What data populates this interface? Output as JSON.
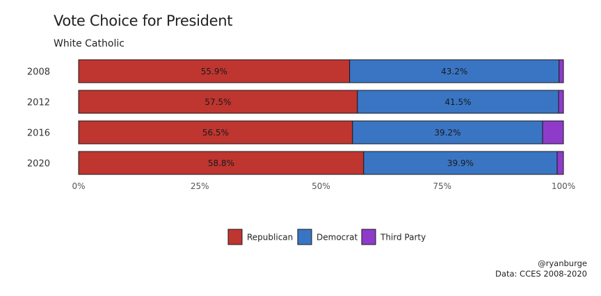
{
  "chart_data": {
    "type": "bar",
    "orientation": "horizontal",
    "stacked": true,
    "title": "Vote Choice for President",
    "subtitle": "White Catholic",
    "categories": [
      "2008",
      "2012",
      "2016",
      "2020"
    ],
    "series": [
      {
        "name": "Republican",
        "color": "#BF3530",
        "values": [
          55.9,
          57.5,
          56.5,
          58.8
        ],
        "labels": [
          "55.9%",
          "57.5%",
          "56.5%",
          "58.8%"
        ]
      },
      {
        "name": "Democrat",
        "color": "#3A75C4",
        "values": [
          43.2,
          41.5,
          39.2,
          39.9
        ],
        "labels": [
          "43.2%",
          "41.5%",
          "39.2%",
          "39.9%"
        ]
      },
      {
        "name": "Third Party",
        "color": "#8E3BC9",
        "values": [
          0.9,
          1.0,
          4.3,
          1.3
        ]
      }
    ],
    "xlim": [
      0,
      100
    ],
    "xticks": [
      "0%",
      "25%",
      "50%",
      "75%",
      "100%"
    ],
    "grid": false,
    "legend_position": "bottom"
  },
  "caption": {
    "line1": "@ryanburge",
    "line2": "Data: CCES 2008-2020"
  }
}
